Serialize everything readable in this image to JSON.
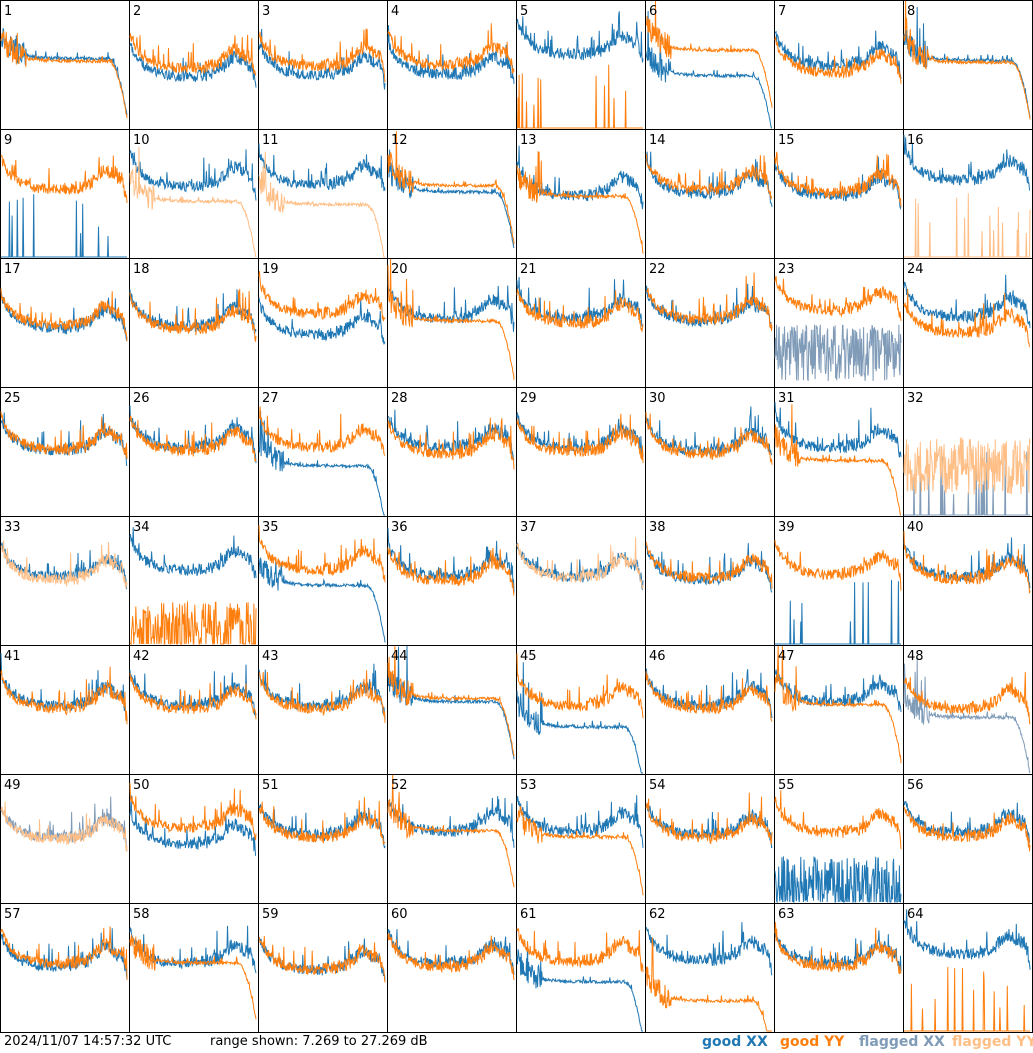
{
  "footer": {
    "timestamp": "2024/11/07 14:57:32 UTC",
    "range": "range shown: 7.269 to 27.269 dB"
  },
  "legend": [
    {
      "label": "good XX",
      "color": "#1f77b4"
    },
    {
      "label": "good YY",
      "color": "#ff7f0e"
    },
    {
      "label": "flagged XX",
      "color": "#7f9bb8"
    },
    {
      "label": "flagged YY",
      "color": "#ffbf87"
    }
  ],
  "chart_data": {
    "type": "line",
    "layout": "grid of 64 small-multiple panels, 8 columns by 8 rows",
    "ylim": [
      7.269,
      27.269
    ],
    "yunit": "dB",
    "panel_labels": [
      "1",
      "2",
      "3",
      "4",
      "5",
      "6",
      "7",
      "8",
      "9",
      "10",
      "11",
      "12",
      "13",
      "14",
      "15",
      "16",
      "17",
      "18",
      "19",
      "20",
      "21",
      "22",
      "23",
      "24",
      "25",
      "26",
      "27",
      "28",
      "29",
      "30",
      "31",
      "32",
      "33",
      "34",
      "35",
      "36",
      "37",
      "38",
      "39",
      "40",
      "41",
      "42",
      "43",
      "44",
      "45",
      "46",
      "47",
      "48",
      "49",
      "50",
      "51",
      "52",
      "53",
      "54",
      "55",
      "56",
      "57",
      "58",
      "59",
      "60",
      "61",
      "62",
      "63",
      "64"
    ],
    "series_names": [
      "good XX",
      "good YY",
      "flagged XX",
      "flagged YY"
    ],
    "panels": [
      {
        "id": "1",
        "xx": {
          "state": "good",
          "shape": "dropoff",
          "level": 18.2
        },
        "yy": {
          "state": "good",
          "shape": "dropoff",
          "level": 17.8
        }
      },
      {
        "id": "2",
        "xx": {
          "state": "good",
          "shape": "bandpass",
          "level": 17.0
        },
        "yy": {
          "state": "good",
          "shape": "bandpass",
          "level": 18.3
        }
      },
      {
        "id": "3",
        "xx": {
          "state": "good",
          "shape": "bandpass",
          "level": 17.2
        },
        "yy": {
          "state": "good",
          "shape": "bandpass",
          "level": 18.6
        }
      },
      {
        "id": "4",
        "xx": {
          "state": "good",
          "shape": "bandpass",
          "level": 17.3
        },
        "yy": {
          "state": "good",
          "shape": "bandpass",
          "level": 18.8
        }
      },
      {
        "id": "5",
        "xx": {
          "state": "good",
          "shape": "bandpass",
          "level": 20.5
        },
        "yy": {
          "state": "good",
          "shape": "spikes",
          "level": 7.5
        }
      },
      {
        "id": "6",
        "xx": {
          "state": "good",
          "shape": "dropoff",
          "level": 15.5
        },
        "yy": {
          "state": "good",
          "shape": "dropoff",
          "level": 19.5
        }
      },
      {
        "id": "7",
        "xx": {
          "state": "good",
          "shape": "bandpass",
          "level": 18.7
        },
        "yy": {
          "state": "good",
          "shape": "bandpass",
          "level": 17.6
        }
      },
      {
        "id": "8",
        "xx": {
          "state": "good",
          "shape": "dropoff",
          "level": 17.9
        },
        "yy": {
          "state": "good",
          "shape": "dropoff",
          "level": 17.6
        }
      },
      {
        "id": "9",
        "xx": {
          "state": "good",
          "shape": "spikes",
          "level": 7.5
        },
        "yy": {
          "state": "good",
          "shape": "bandpass",
          "level": 19.5
        }
      },
      {
        "id": "10",
        "xx": {
          "state": "good",
          "shape": "bandpass",
          "level": 20.0
        },
        "yy": {
          "state": "flagged",
          "shape": "dropoff",
          "level": 16.0
        }
      },
      {
        "id": "11",
        "xx": {
          "state": "good",
          "shape": "bandpass",
          "level": 20.2
        },
        "yy": {
          "state": "flagged",
          "shape": "dropoff",
          "level": 15.5
        }
      },
      {
        "id": "12",
        "xx": {
          "state": "good",
          "shape": "dropoff",
          "level": 17.5
        },
        "yy": {
          "state": "good",
          "shape": "dropoff",
          "level": 18.5
        }
      },
      {
        "id": "13",
        "xx": {
          "state": "good",
          "shape": "bandpass",
          "level": 18.5
        },
        "yy": {
          "state": "good",
          "shape": "dropoff",
          "level": 16.8
        }
      },
      {
        "id": "14",
        "xx": {
          "state": "good",
          "shape": "bandpass",
          "level": 18.8
        },
        "yy": {
          "state": "good",
          "shape": "bandpass",
          "level": 19.5
        }
      },
      {
        "id": "15",
        "xx": {
          "state": "good",
          "shape": "bandpass",
          "level": 18.5
        },
        "yy": {
          "state": "good",
          "shape": "bandpass",
          "level": 19.0
        }
      },
      {
        "id": "16",
        "xx": {
          "state": "good",
          "shape": "bandpass",
          "level": 21.0
        },
        "yy": {
          "state": "flagged",
          "shape": "spikes",
          "level": 7.5
        }
      },
      {
        "id": "17",
        "xx": {
          "state": "good",
          "shape": "bandpass",
          "level": 18.0
        },
        "yy": {
          "state": "good",
          "shape": "bandpass",
          "level": 18.5
        }
      },
      {
        "id": "18",
        "xx": {
          "state": "good",
          "shape": "bandpass",
          "level": 18.3
        },
        "yy": {
          "state": "good",
          "shape": "bandpass",
          "level": 17.8
        }
      },
      {
        "id": "19",
        "xx": {
          "state": "good",
          "shape": "bandpass",
          "level": 17.0
        },
        "yy": {
          "state": "good",
          "shape": "bandpass",
          "level": 20.3
        }
      },
      {
        "id": "20",
        "xx": {
          "state": "good",
          "shape": "bandpass",
          "level": 19.5
        },
        "yy": {
          "state": "good",
          "shape": "dropoff",
          "level": 17.5
        }
      },
      {
        "id": "21",
        "xx": {
          "state": "good",
          "shape": "bandpass",
          "level": 19.5
        },
        "yy": {
          "state": "good",
          "shape": "bandpass",
          "level": 18.8
        }
      },
      {
        "id": "22",
        "xx": {
          "state": "good",
          "shape": "bandpass",
          "level": 19.0
        },
        "yy": {
          "state": "good",
          "shape": "bandpass",
          "level": 19.4
        }
      },
      {
        "id": "23",
        "xx": {
          "state": "flagged",
          "shape": "noisy",
          "level": 12.5
        },
        "yy": {
          "state": "good",
          "shape": "bandpass",
          "level": 20.8
        }
      },
      {
        "id": "24",
        "xx": {
          "state": "good",
          "shape": "bandpass",
          "level": 19.8
        },
        "yy": {
          "state": "good",
          "shape": "bandpass",
          "level": 17.2
        }
      },
      {
        "id": "25",
        "xx": {
          "state": "good",
          "shape": "bandpass",
          "level": 19.0
        },
        "yy": {
          "state": "good",
          "shape": "bandpass",
          "level": 19.2
        }
      },
      {
        "id": "26",
        "xx": {
          "state": "good",
          "shape": "bandpass",
          "level": 19.5
        },
        "yy": {
          "state": "good",
          "shape": "bandpass",
          "level": 19.0
        }
      },
      {
        "id": "27",
        "xx": {
          "state": "good",
          "shape": "dropoff",
          "level": 15.0
        },
        "yy": {
          "state": "good",
          "shape": "bandpass",
          "level": 19.5
        }
      },
      {
        "id": "28",
        "xx": {
          "state": "good",
          "shape": "bandpass",
          "level": 19.5
        },
        "yy": {
          "state": "good",
          "shape": "bandpass",
          "level": 18.5
        }
      },
      {
        "id": "29",
        "xx": {
          "state": "good",
          "shape": "bandpass",
          "level": 19.5
        },
        "yy": {
          "state": "good",
          "shape": "bandpass",
          "level": 18.8
        }
      },
      {
        "id": "30",
        "xx": {
          "state": "good",
          "shape": "bandpass",
          "level": 19.0
        },
        "yy": {
          "state": "good",
          "shape": "bandpass",
          "level": 18.5
        }
      },
      {
        "id": "31",
        "xx": {
          "state": "good",
          "shape": "bandpass",
          "level": 19.5
        },
        "yy": {
          "state": "good",
          "shape": "dropoff",
          "level": 15.8
        }
      },
      {
        "id": "32",
        "xx": {
          "state": "flagged",
          "shape": "spikes",
          "level": 7.5
        },
        "yy": {
          "state": "flagged",
          "shape": "noisy",
          "level": 15.0
        }
      },
      {
        "id": "33",
        "xx": {
          "state": "good",
          "shape": "bandpass",
          "level": 19.5
        },
        "yy": {
          "state": "flagged",
          "shape": "bandpass",
          "level": 19.0
        }
      },
      {
        "id": "34",
        "xx": {
          "state": "good",
          "shape": "bandpass",
          "level": 20.5
        },
        "yy": {
          "state": "good",
          "shape": "noisy",
          "level": 9.5
        }
      },
      {
        "id": "35",
        "xx": {
          "state": "good",
          "shape": "dropoff",
          "level": 16.5
        },
        "yy": {
          "state": "good",
          "shape": "bandpass",
          "level": 20.5
        }
      },
      {
        "id": "36",
        "xx": {
          "state": "good",
          "shape": "bandpass",
          "level": 19.5
        },
        "yy": {
          "state": "good",
          "shape": "bandpass",
          "level": 18.8
        }
      },
      {
        "id": "37",
        "xx": {
          "state": "good",
          "shape": "bandpass",
          "level": 19.5
        },
        "yy": {
          "state": "flagged",
          "shape": "bandpass",
          "level": 19.3
        }
      },
      {
        "id": "38",
        "xx": {
          "state": "good",
          "shape": "bandpass",
          "level": 19.0
        },
        "yy": {
          "state": "good",
          "shape": "bandpass",
          "level": 19.3
        }
      },
      {
        "id": "39",
        "xx": {
          "state": "good",
          "shape": "spikes",
          "level": 7.5
        },
        "yy": {
          "state": "good",
          "shape": "bandpass",
          "level": 19.8
        }
      },
      {
        "id": "40",
        "xx": {
          "state": "good",
          "shape": "bandpass",
          "level": 19.5
        },
        "yy": {
          "state": "good",
          "shape": "bandpass",
          "level": 19.0
        }
      },
      {
        "id": "41",
        "xx": {
          "state": "good",
          "shape": "bandpass",
          "level": 19.5
        },
        "yy": {
          "state": "good",
          "shape": "bandpass",
          "level": 19.0
        }
      },
      {
        "id": "42",
        "xx": {
          "state": "good",
          "shape": "bandpass",
          "level": 19.5
        },
        "yy": {
          "state": "good",
          "shape": "bandpass",
          "level": 19.0
        }
      },
      {
        "id": "43",
        "xx": {
          "state": "good",
          "shape": "bandpass",
          "level": 19.5
        },
        "yy": {
          "state": "good",
          "shape": "bandpass",
          "level": 19.0
        }
      },
      {
        "id": "44",
        "xx": {
          "state": "good",
          "shape": "dropoff",
          "level": 18.5
        },
        "yy": {
          "state": "good",
          "shape": "dropoff",
          "level": 19.0
        }
      },
      {
        "id": "45",
        "xx": {
          "state": "good",
          "shape": "dropoff",
          "level": 14.5
        },
        "yy": {
          "state": "good",
          "shape": "bandpass",
          "level": 19.5
        }
      },
      {
        "id": "46",
        "xx": {
          "state": "good",
          "shape": "bandpass",
          "level": 19.5
        },
        "yy": {
          "state": "good",
          "shape": "bandpass",
          "level": 19.0
        }
      },
      {
        "id": "47",
        "xx": {
          "state": "good",
          "shape": "bandpass",
          "level": 20.0
        },
        "yy": {
          "state": "good",
          "shape": "dropoff",
          "level": 18.0
        }
      },
      {
        "id": "48",
        "xx": {
          "state": "flagged",
          "shape": "dropoff",
          "level": 16.0
        },
        "yy": {
          "state": "good",
          "shape": "bandpass",
          "level": 19.0
        }
      },
      {
        "id": "49",
        "xx": {
          "state": "flagged",
          "shape": "bandpass",
          "level": 19.0
        },
        "yy": {
          "state": "flagged",
          "shape": "bandpass",
          "level": 18.8
        }
      },
      {
        "id": "50",
        "xx": {
          "state": "good",
          "shape": "bandpass",
          "level": 18.0
        },
        "yy": {
          "state": "good",
          "shape": "bandpass",
          "level": 20.5
        }
      },
      {
        "id": "51",
        "xx": {
          "state": "good",
          "shape": "bandpass",
          "level": 19.5
        },
        "yy": {
          "state": "good",
          "shape": "bandpass",
          "level": 19.0
        }
      },
      {
        "id": "52",
        "xx": {
          "state": "good",
          "shape": "bandpass",
          "level": 20.0
        },
        "yy": {
          "state": "good",
          "shape": "dropoff",
          "level": 18.5
        }
      },
      {
        "id": "53",
        "xx": {
          "state": "good",
          "shape": "bandpass",
          "level": 20.0
        },
        "yy": {
          "state": "good",
          "shape": "dropoff",
          "level": 17.5
        }
      },
      {
        "id": "54",
        "xx": {
          "state": "good",
          "shape": "bandpass",
          "level": 19.5
        },
        "yy": {
          "state": "good",
          "shape": "bandpass",
          "level": 19.0
        }
      },
      {
        "id": "55",
        "xx": {
          "state": "good",
          "shape": "noisy",
          "level": 10.0
        },
        "yy": {
          "state": "good",
          "shape": "bandpass",
          "level": 19.8
        }
      },
      {
        "id": "56",
        "xx": {
          "state": "good",
          "shape": "bandpass",
          "level": 19.8
        },
        "yy": {
          "state": "good",
          "shape": "bandpass",
          "level": 19.0
        }
      },
      {
        "id": "57",
        "xx": {
          "state": "good",
          "shape": "bandpass",
          "level": 19.0
        },
        "yy": {
          "state": "good",
          "shape": "bandpass",
          "level": 19.5
        }
      },
      {
        "id": "58",
        "xx": {
          "state": "good",
          "shape": "bandpass",
          "level": 19.5
        },
        "yy": {
          "state": "good",
          "shape": "dropoff",
          "level": 18.0
        }
      },
      {
        "id": "59",
        "xx": {
          "state": "good",
          "shape": "bandpass",
          "level": 18.5
        },
        "yy": {
          "state": "good",
          "shape": "bandpass",
          "level": 18.5
        }
      },
      {
        "id": "60",
        "xx": {
          "state": "good",
          "shape": "bandpass",
          "level": 19.5
        },
        "yy": {
          "state": "good",
          "shape": "bandpass",
          "level": 19.0
        }
      },
      {
        "id": "61",
        "xx": {
          "state": "good",
          "shape": "dropoff",
          "level": 15.0
        },
        "yy": {
          "state": "good",
          "shape": "bandpass",
          "level": 19.8
        }
      },
      {
        "id": "62",
        "xx": {
          "state": "good",
          "shape": "bandpass",
          "level": 20.0
        },
        "yy": {
          "state": "good",
          "shape": "dropoff",
          "level": 12.0
        }
      },
      {
        "id": "63",
        "xx": {
          "state": "good",
          "shape": "bandpass",
          "level": 19.5
        },
        "yy": {
          "state": "good",
          "shape": "bandpass",
          "level": 19.0
        }
      },
      {
        "id": "64",
        "xx": {
          "state": "good",
          "shape": "bandpass",
          "level": 21.0
        },
        "yy": {
          "state": "good",
          "shape": "spikes",
          "level": 7.5
        }
      }
    ]
  }
}
